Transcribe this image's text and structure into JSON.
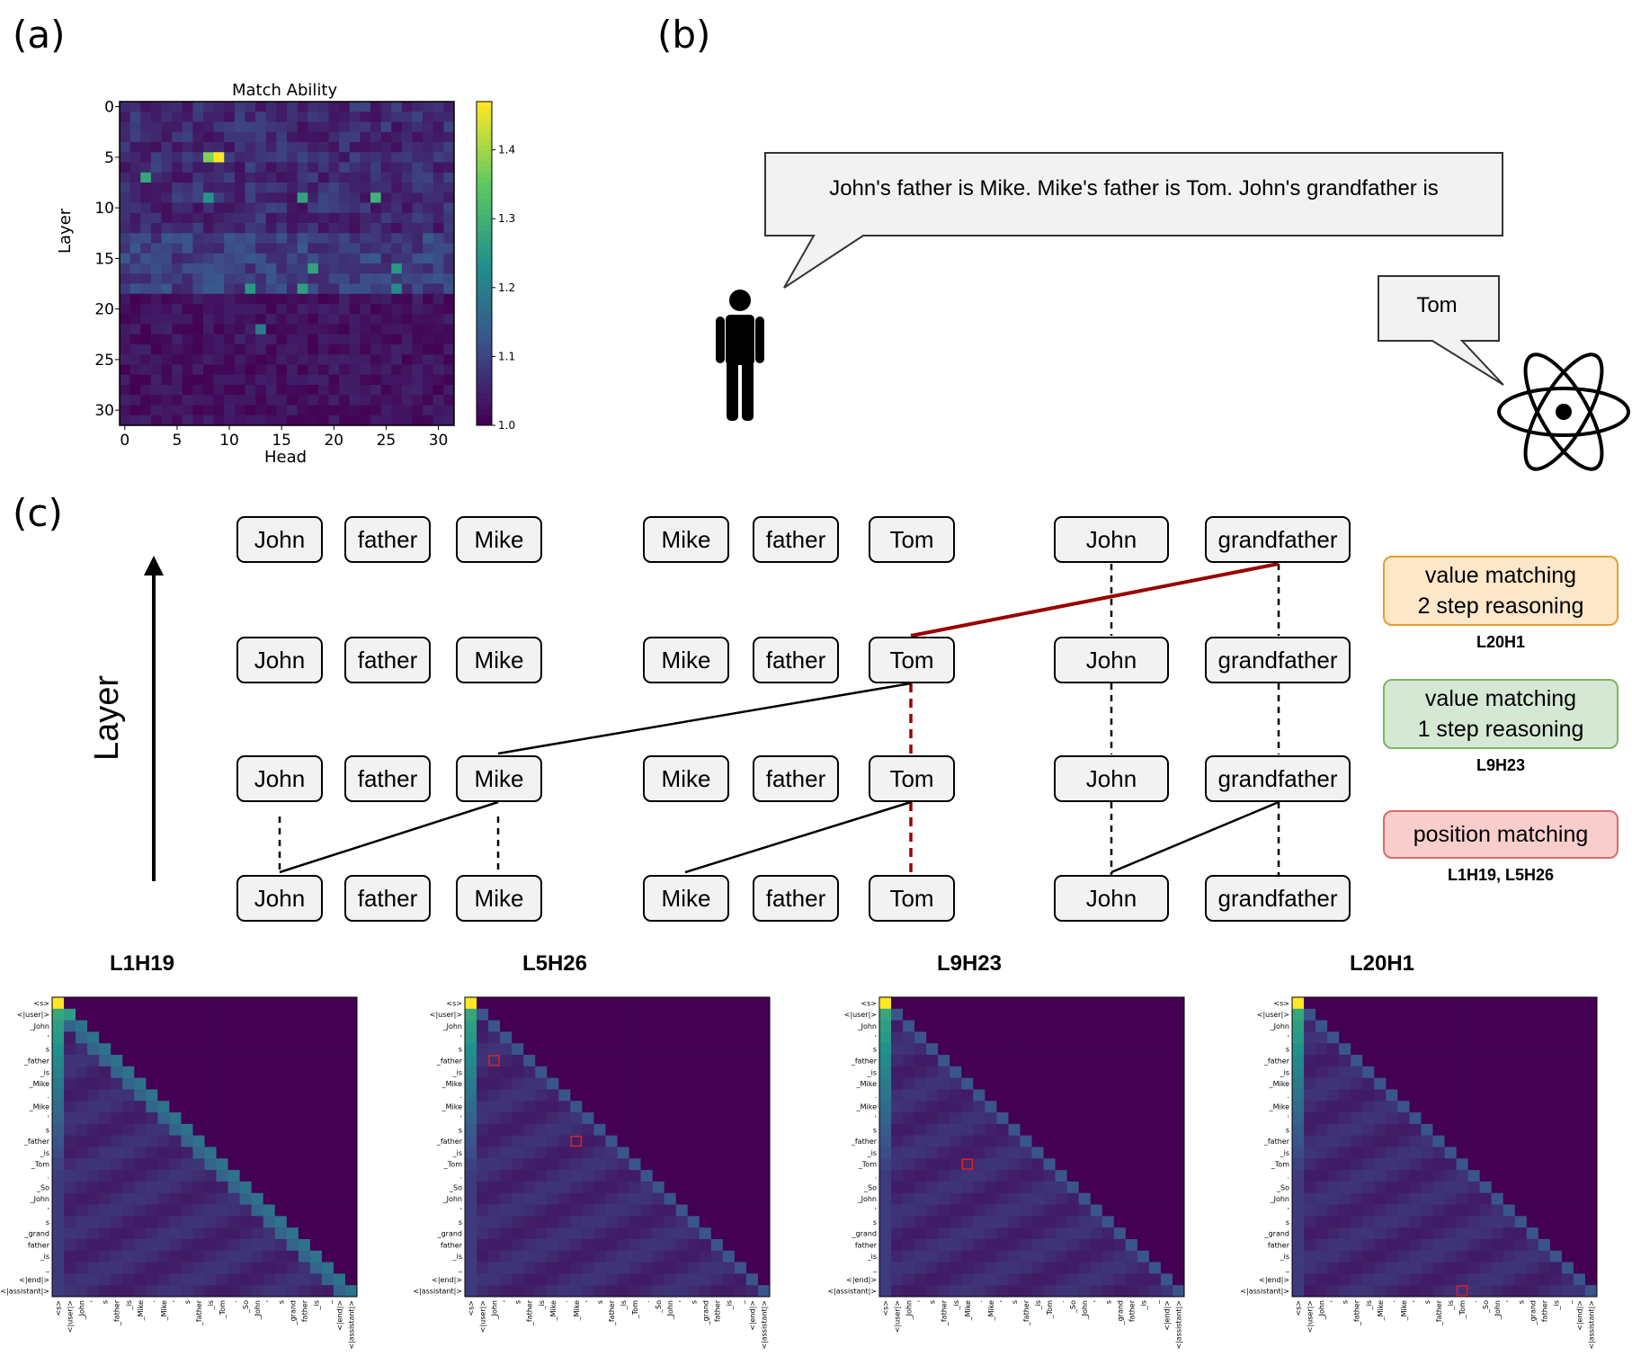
{
  "panels": {
    "a": "(a)",
    "b": "(b)",
    "c": "(c)"
  },
  "heatmap": {
    "title": "Match Ability",
    "xlabel": "Head",
    "ylabel": "Layer",
    "xticks": [
      "0",
      "5",
      "10",
      "15",
      "20",
      "25",
      "30"
    ],
    "yticks": [
      "0",
      "5",
      "10",
      "15",
      "20",
      "25",
      "30"
    ],
    "colorbar_ticks": [
      "1.4",
      "1.3",
      "1.2",
      "1.1",
      "1.0"
    ],
    "colormap": "viridis",
    "vmin": 1.0,
    "vmax": 1.47
  },
  "chart_data": {
    "type": "heatmap",
    "title": "Match Ability",
    "xlabel": "Head",
    "ylabel": "Layer",
    "rows": 32,
    "cols": 32,
    "xlim": [
      0,
      31
    ],
    "ylim": [
      0,
      31
    ],
    "vrange": [
      1.0,
      1.47
    ],
    "hotspots": [
      {
        "layer": 5,
        "head": 9,
        "value": 1.47
      },
      {
        "layer": 5,
        "head": 8,
        "value": 1.38
      },
      {
        "layer": 7,
        "head": 2,
        "value": 1.28
      },
      {
        "layer": 9,
        "head": 24,
        "value": 1.3
      },
      {
        "layer": 9,
        "head": 17,
        "value": 1.27
      },
      {
        "layer": 9,
        "head": 8,
        "value": 1.24
      },
      {
        "layer": 16,
        "head": 18,
        "value": 1.27
      },
      {
        "layer": 16,
        "head": 26,
        "value": 1.25
      },
      {
        "layer": 18,
        "head": 17,
        "value": 1.26
      },
      {
        "layer": 18,
        "head": 12,
        "value": 1.25
      },
      {
        "layer": 18,
        "head": 26,
        "value": 1.22
      },
      {
        "layer": 22,
        "head": 13,
        "value": 1.2
      }
    ]
  },
  "dialog": {
    "question": "John's father is Mike. Mike's father is Tom. John's grandfather is",
    "answer": "Tom"
  },
  "layer_axis_label": "Layer",
  "circuit_rows": [
    [
      "John",
      "father",
      "Mike",
      "Mike",
      "father",
      "Tom",
      "John",
      "grandfather"
    ],
    [
      "John",
      "father",
      "Mike",
      "Mike",
      "father",
      "Tom",
      "John",
      "grandfather"
    ],
    [
      "John",
      "father",
      "Mike",
      "Mike",
      "father",
      "Tom",
      "John",
      "grandfather"
    ],
    [
      "John",
      "father",
      "Mike",
      "Mike",
      "father",
      "Tom",
      "John",
      "grandfather"
    ]
  ],
  "legend": [
    {
      "line1": "value matching",
      "line2": "2 step reasoning",
      "head": "L20H1",
      "border": "#e0a030",
      "fill": "#fde7c9"
    },
    {
      "line1": "value matching",
      "line2": "1 step reasoning",
      "head": "L9H23",
      "border": "#82b366",
      "fill": "#d5e8d4"
    },
    {
      "line1": "position matching",
      "line2": "",
      "head": "L1H19, L5H26",
      "border": "#d96b6b",
      "fill": "#f8cecc"
    }
  ],
  "attention_maps": [
    {
      "title": "L1H19"
    },
    {
      "title": "L5H26"
    },
    {
      "title": "L9H23"
    },
    {
      "title": "L20H1"
    }
  ],
  "tokens": [
    "<s>",
    "<|user|>",
    "_John",
    "'",
    "s",
    "_father",
    "_is",
    "_Mike",
    ".",
    "_Mike",
    "'",
    "s",
    "_father",
    "_is",
    "_Tom",
    ".",
    "_So",
    "_John",
    "'",
    "s",
    "_grand",
    "father",
    "_is",
    "_",
    "<|end|>",
    "<|assistant|>"
  ],
  "colors": {
    "link_red": "#990000",
    "link_black": "#000000",
    "viridis_low": "#440154",
    "viridis_high": "#fde725"
  }
}
